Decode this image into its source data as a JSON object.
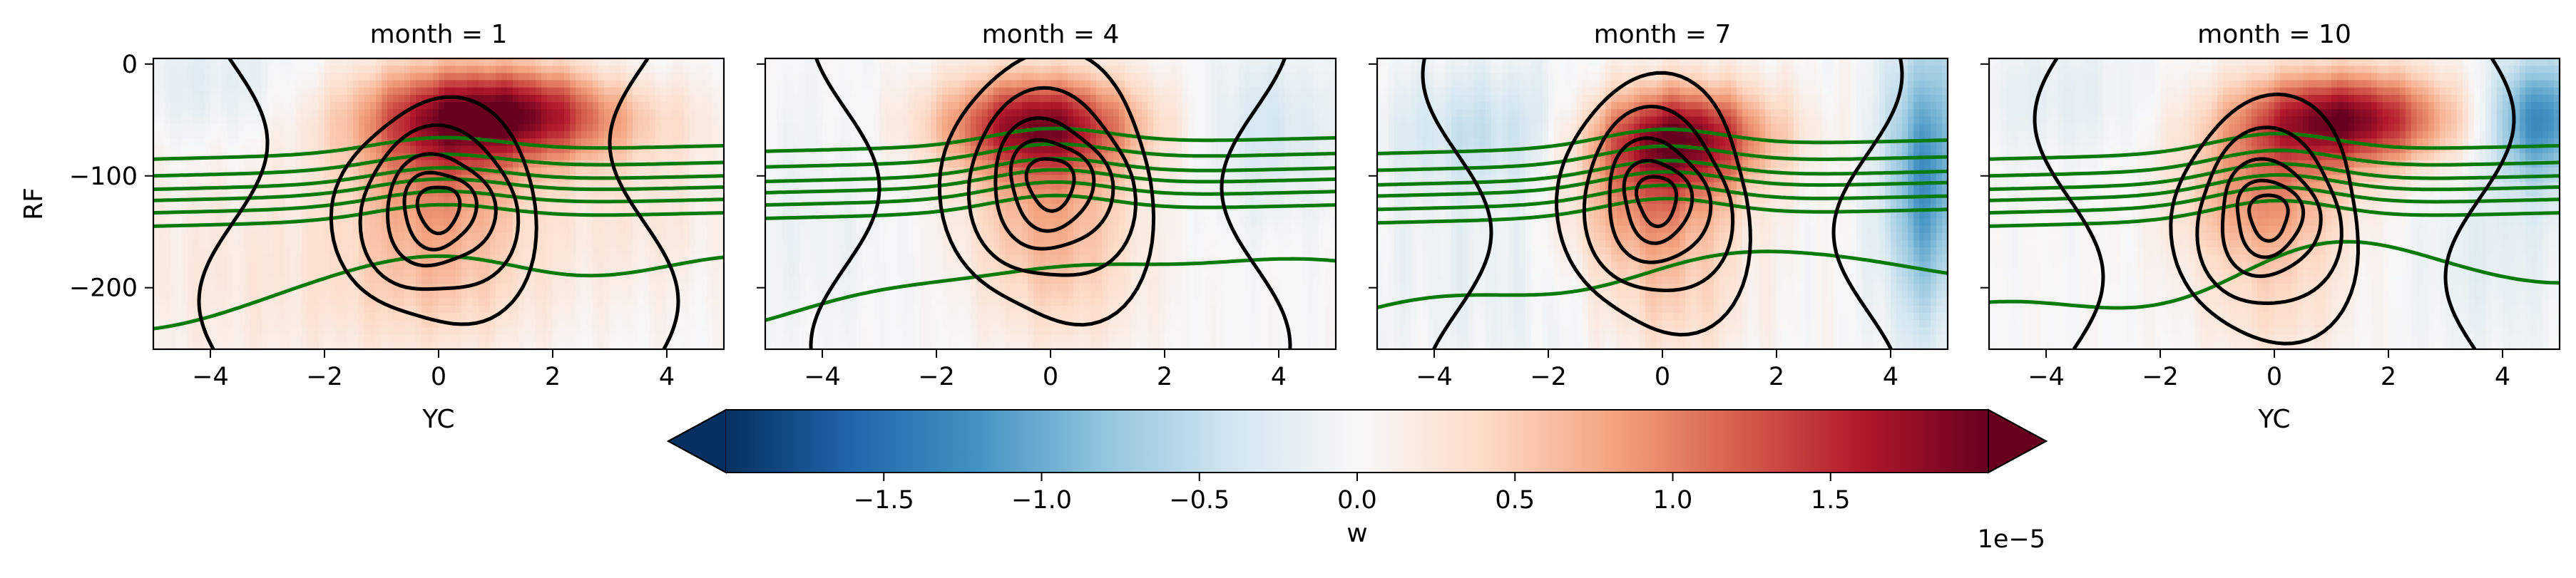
{
  "chart_data": {
    "type": "heatmap",
    "variable": "w",
    "colorbar": {
      "label": "w",
      "offset_text": "1e−5",
      "ticks": [
        -1.5,
        -1.0,
        -0.5,
        0.0,
        0.5,
        1.0,
        1.5
      ],
      "tick_labels": [
        "−1.5",
        "−1.0",
        "−0.5",
        "0.0",
        "0.5",
        "1.0",
        "1.5"
      ],
      "vmin": -2.0,
      "vmax": 2.0,
      "extend": "both",
      "colormap": "RdBu_r",
      "stops": [
        "#053061",
        "#2166ac",
        "#4393c3",
        "#92c5de",
        "#d1e5f0",
        "#f7f7f7",
        "#fddbc7",
        "#f4a582",
        "#d6604d",
        "#b2182b",
        "#67001f"
      ]
    },
    "xlabel": "YC",
    "ylabel": "RF",
    "xlim": [
      -5,
      5
    ],
    "ylim": [
      -255,
      5
    ],
    "xticks": [
      -4,
      -2,
      0,
      2,
      4
    ],
    "xtick_labels": [
      "−4",
      "−2",
      "0",
      "2",
      "4"
    ],
    "yticks": [
      0,
      -100,
      -200
    ],
    "ytick_labels": [
      "0",
      "−100",
      "−200"
    ],
    "contour_colors": {
      "black": "#000000",
      "green": "#0a7a0a"
    },
    "panels": [
      {
        "title": "month = 1",
        "show_xlabel": true,
        "field": {
          "blobs": [
            {
              "x": 1.2,
              "y": -45,
              "sx": 1.6,
              "sy": 30,
              "a": 1.8
            },
            {
              "x": 0.0,
              "y": -95,
              "sx": 1.1,
              "sy": 55,
              "a": 0.9
            },
            {
              "x": 0.0,
              "y": -200,
              "sx": 1.3,
              "sy": 45,
              "a": 0.4
            },
            {
              "x": -3.5,
              "y": -180,
              "sx": 2.0,
              "sy": 90,
              "a": 0.2
            },
            {
              "x": 3.5,
              "y": -130,
              "sx": 1.2,
              "sy": 60,
              "a": 0.22
            },
            {
              "x": -4.0,
              "y": -20,
              "sx": 1.2,
              "sy": 40,
              "a": -0.25
            },
            {
              "x": 3.2,
              "y": -25,
              "sx": 0.8,
              "sy": 35,
              "a": -0.2
            }
          ],
          "streak_amp": 0.07
        },
        "black_contours": {
          "center": [
            0.0,
            -128
          ],
          "rings": [
            [
              0.35,
              20
            ],
            [
              0.6,
              33
            ],
            [
              0.9,
              48
            ],
            [
              1.3,
              72
            ],
            [
              1.7,
              98
            ]
          ]
        },
        "green_contours": {
          "center_x": 0.0,
          "levels": [
            -85,
            -100,
            -112,
            -122,
            -133,
            -145
          ],
          "bump": 22,
          "width": 1.6
        }
      },
      {
        "title": "month = 4",
        "show_xlabel": false,
        "field": {
          "blobs": [
            {
              "x": -0.2,
              "y": -55,
              "sx": 1.2,
              "sy": 32,
              "a": 1.8
            },
            {
              "x": 0.0,
              "y": -140,
              "sx": 1.0,
              "sy": 50,
              "a": 0.7
            },
            {
              "x": 0.3,
              "y": -220,
              "sx": 1.0,
              "sy": 40,
              "a": 0.2
            },
            {
              "x": 3.8,
              "y": -60,
              "sx": 0.8,
              "sy": 50,
              "a": -0.35
            },
            {
              "x": -4.2,
              "y": -130,
              "sx": 1.2,
              "sy": 80,
              "a": -0.12
            }
          ],
          "streak_amp": 0.06
        },
        "black_contours": {
          "center": [
            0.0,
            -105
          ],
          "rings": [
            [
              0.4,
              22
            ],
            [
              0.7,
              38
            ],
            [
              1.0,
              55
            ],
            [
              1.4,
              80
            ],
            [
              1.8,
              115
            ]
          ]
        },
        "green_contours": {
          "center_x": 0.0,
          "levels": [
            -78,
            -92,
            -105,
            -115,
            -126,
            -138
          ],
          "bump": 24,
          "width": 1.5
        }
      },
      {
        "title": "month = 7",
        "show_xlabel": false,
        "field": {
          "blobs": [
            {
              "x": 0.3,
              "y": -65,
              "sx": 1.1,
              "sy": 32,
              "a": 1.8
            },
            {
              "x": -0.2,
              "y": -130,
              "sx": 1.0,
              "sy": 45,
              "a": 0.9
            },
            {
              "x": 0.2,
              "y": -220,
              "sx": 0.9,
              "sy": 40,
              "a": 0.35
            },
            {
              "x": 4.6,
              "y": -100,
              "sx": 0.5,
              "sy": 90,
              "a": -1.2
            },
            {
              "x": -3.0,
              "y": -60,
              "sx": 1.3,
              "sy": 40,
              "a": -0.45
            },
            {
              "x": -3.0,
              "y": -190,
              "sx": 1.4,
              "sy": 70,
              "a": -0.15
            }
          ],
          "streak_amp": 0.09
        },
        "black_contours": {
          "center": [
            -0.1,
            -120
          ],
          "rings": [
            [
              0.35,
              20
            ],
            [
              0.6,
              33
            ],
            [
              0.9,
              50
            ],
            [
              1.3,
              75
            ],
            [
              1.7,
              105
            ]
          ]
        },
        "green_contours": {
          "center_x": 0.0,
          "levels": [
            -80,
            -95,
            -108,
            -118,
            -130,
            -142
          ],
          "bump": 26,
          "width": 1.5
        }
      },
      {
        "title": "month = 10",
        "show_xlabel": true,
        "field": {
          "blobs": [
            {
              "x": 1.2,
              "y": -50,
              "sx": 1.3,
              "sy": 30,
              "a": 1.9
            },
            {
              "x": -0.2,
              "y": -120,
              "sx": 1.0,
              "sy": 45,
              "a": 0.9
            },
            {
              "x": 0.0,
              "y": -220,
              "sx": 0.9,
              "sy": 40,
              "a": 0.3
            },
            {
              "x": 4.6,
              "y": -50,
              "sx": 0.6,
              "sy": 40,
              "a": -1.3
            },
            {
              "x": 3.8,
              "y": -170,
              "sx": 1.0,
              "sy": 70,
              "a": -0.2
            },
            {
              "x": -3.8,
              "y": -30,
              "sx": 1.2,
              "sy": 40,
              "a": -0.2
            }
          ],
          "streak_amp": 0.06
        },
        "black_contours": {
          "center": [
            -0.1,
            -135
          ],
          "rings": [
            [
              0.35,
              18
            ],
            [
              0.6,
              30
            ],
            [
              0.9,
              46
            ],
            [
              1.3,
              70
            ],
            [
              1.7,
              98
            ]
          ]
        },
        "green_contours": {
          "center_x": 0.0,
          "levels": [
            -85,
            -100,
            -112,
            -122,
            -133,
            -145
          ],
          "bump": 28,
          "width": 1.5
        }
      }
    ]
  }
}
